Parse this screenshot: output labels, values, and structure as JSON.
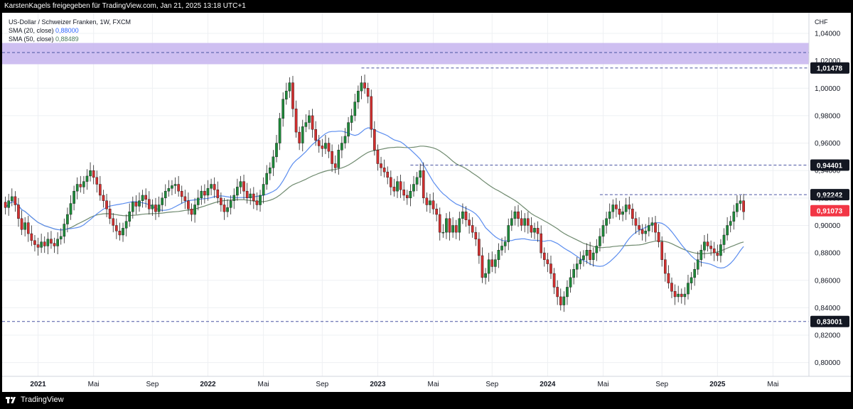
{
  "header": {
    "text": "KarstenKagels freigegeben für TradingView.com,  Jan 21, 2025 13:18 UTC+1"
  },
  "legend": {
    "symbol": "US-Dollar / Schweizer Franken, 1W, FXCM",
    "sma20_label": "SMA (20, close)",
    "sma20_value": "0,88000",
    "sma50_label": "SMA (50, close)",
    "sma50_value": "0,88489"
  },
  "axis": {
    "currency": "CHF"
  },
  "footer": {
    "brand": "TradingView"
  },
  "colors": {
    "up": "#26a69a",
    "down": "#ef5350",
    "up_candle": "#1e8a3a",
    "down_candle": "#d32f2f",
    "sma20": "#5b8def",
    "sma50": "#6f8a6f",
    "zone": "#c9b8ef",
    "line": "#4a55a2",
    "last_price": "#f23645",
    "label_bg": "#131722"
  },
  "chart_data": {
    "type": "candlestick",
    "title": "US-Dollar / Schweizer Franken, 1W, FXCM",
    "ylabel": "CHF",
    "ylim": [
      0.79,
      1.055
    ],
    "y_ticks": [
      {
        "value": 1.04,
        "label": "1,04000"
      },
      {
        "value": 1.02,
        "label": "1,02000"
      },
      {
        "value": 1.0,
        "label": "1,00000"
      },
      {
        "value": 0.98,
        "label": "0,98000"
      },
      {
        "value": 0.96,
        "label": "0,96000"
      },
      {
        "value": 0.94,
        "label": "0,94000"
      },
      {
        "value": 0.92,
        "label": "0,92000"
      },
      {
        "value": 0.9,
        "label": "0,90000"
      },
      {
        "value": 0.88,
        "label": "0,88000"
      },
      {
        "value": 0.86,
        "label": "0,86000"
      },
      {
        "value": 0.84,
        "label": "0,84000"
      },
      {
        "value": 0.82,
        "label": "0,82000"
      },
      {
        "value": 0.8,
        "label": "0,80000"
      }
    ],
    "x_range_weeks": [
      -2,
      146
    ],
    "x_ticks": [
      {
        "week": 0,
        "label": "2021",
        "bold": true
      },
      {
        "week": 17,
        "label": "Mai",
        "bold": false
      },
      {
        "week": 35,
        "label": "Sep",
        "bold": false
      },
      {
        "week": 52,
        "label": "2022",
        "bold": true
      },
      {
        "week": 69,
        "label": "Mai",
        "bold": false
      },
      {
        "week": 87,
        "label": "Sep",
        "bold": false
      },
      {
        "week": 104,
        "label": "2023",
        "bold": true
      },
      {
        "week": 121,
        "label": "Mai",
        "bold": false
      },
      {
        "week": 139,
        "label": "Sep",
        "bold": false
      },
      {
        "week": 156,
        "label": "2024",
        "bold": true
      },
      {
        "week": 173,
        "label": "Mai",
        "bold": false
      },
      {
        "week": 191,
        "label": "Sep",
        "bold": false
      },
      {
        "week": 208,
        "label": "2025",
        "bold": true
      },
      {
        "week": 225,
        "label": "Mai",
        "bold": false
      }
    ],
    "x_domain": [
      -11,
      236
    ],
    "resistance_zone": {
      "low": 1.0175,
      "high": 1.033,
      "mid": 1.026
    },
    "levels": [
      {
        "value": 1.01478,
        "label": "1,01478",
        "from_week": 99,
        "bg": "#131722"
      },
      {
        "value": 0.94401,
        "label": "0,94401",
        "from_week": 114,
        "bg": "#131722"
      },
      {
        "value": 0.92242,
        "label": "0,92242",
        "from_week": 172,
        "bg": "#131722"
      },
      {
        "value": 0.83001,
        "label": "0,83001",
        "from_week": -11,
        "bg": "#131722"
      }
    ],
    "last_price": {
      "value": 0.91073,
      "label": "0,91073"
    },
    "candles_close": [
      0.913,
      0.918,
      0.921,
      0.915,
      0.905,
      0.897,
      0.902,
      0.894,
      0.889,
      0.886,
      0.884,
      0.888,
      0.885,
      0.89,
      0.887,
      0.885,
      0.89,
      0.892,
      0.901,
      0.908,
      0.916,
      0.925,
      0.93,
      0.928,
      0.932,
      0.936,
      0.94,
      0.935,
      0.93,
      0.922,
      0.918,
      0.912,
      0.905,
      0.9,
      0.896,
      0.893,
      0.898,
      0.903,
      0.91,
      0.917,
      0.914,
      0.918,
      0.922,
      0.919,
      0.912,
      0.915,
      0.91,
      0.915,
      0.92,
      0.925,
      0.927,
      0.929,
      0.93,
      0.925,
      0.921,
      0.918,
      0.912,
      0.908,
      0.915,
      0.92,
      0.925,
      0.922,
      0.927,
      0.93,
      0.926,
      0.92,
      0.915,
      0.91,
      0.913,
      0.918,
      0.922,
      0.928,
      0.932,
      0.925,
      0.92,
      0.923,
      0.918,
      0.915,
      0.922,
      0.93,
      0.938,
      0.942,
      0.95,
      0.96,
      0.978,
      0.992,
      0.998,
      1.004,
      0.985,
      0.968,
      0.96,
      0.972,
      0.975,
      0.98,
      0.97,
      0.962,
      0.958,
      0.956,
      0.96,
      0.954,
      0.945,
      0.942,
      0.955,
      0.96,
      0.965,
      0.975,
      0.98,
      0.99,
      0.998,
      1.004,
      1.0,
      0.994,
      0.97,
      0.955,
      0.945,
      0.942,
      0.939,
      0.935,
      0.928,
      0.925,
      0.932,
      0.926,
      0.922,
      0.92,
      0.925,
      0.93,
      0.935,
      0.94,
      0.92,
      0.915,
      0.918,
      0.912,
      0.908,
      0.895,
      0.895,
      0.905,
      0.895,
      0.9,
      0.895,
      0.905,
      0.91,
      0.904,
      0.9,
      0.895,
      0.89,
      0.878,
      0.862,
      0.865,
      0.875,
      0.87,
      0.875,
      0.882,
      0.885,
      0.888,
      0.9,
      0.905,
      0.91,
      0.905,
      0.9,
      0.905,
      0.9,
      0.895,
      0.898,
      0.894,
      0.88,
      0.875,
      0.872,
      0.865,
      0.855,
      0.848,
      0.842,
      0.848,
      0.855,
      0.862,
      0.868,
      0.872,
      0.875,
      0.878,
      0.882,
      0.875,
      0.88,
      0.885,
      0.892,
      0.9,
      0.905,
      0.91,
      0.915,
      0.912,
      0.908,
      0.91,
      0.915,
      0.912,
      0.905,
      0.9,
      0.897,
      0.894,
      0.896,
      0.9,
      0.902,
      0.895,
      0.888,
      0.875,
      0.865,
      0.858,
      0.852,
      0.848,
      0.85,
      0.848,
      0.85,
      0.858,
      0.862,
      0.868,
      0.875,
      0.882,
      0.888,
      0.885,
      0.883,
      0.88,
      0.878,
      0.886,
      0.893,
      0.9,
      0.903,
      0.91,
      0.916,
      0.918,
      0.91
    ]
  }
}
